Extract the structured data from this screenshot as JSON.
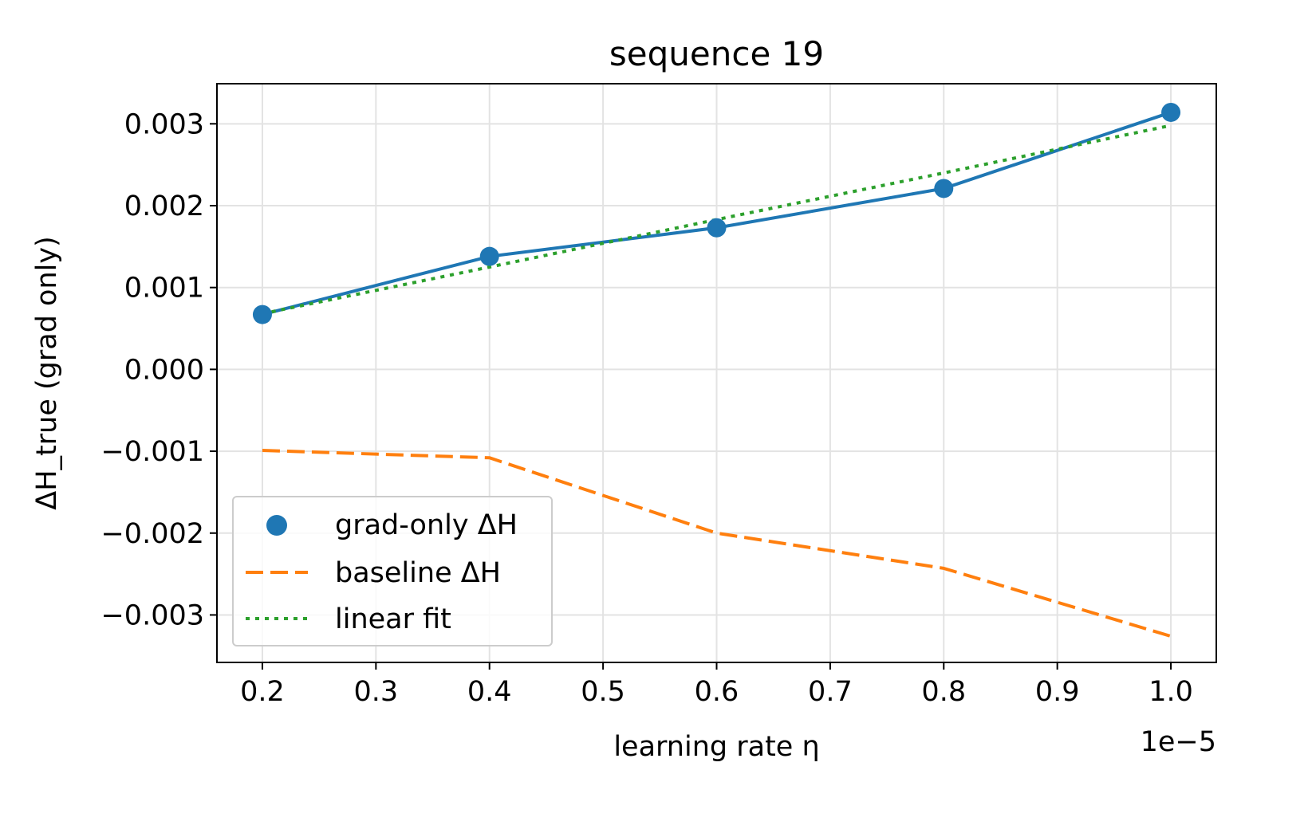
{
  "chart_data": {
    "type": "line",
    "title": "sequence 19",
    "xlabel": "learning rate η",
    "ylabel": "ΔH_true (grad only)",
    "x_offset_text": "1e−5",
    "x": [
      2e-06,
      4e-06,
      6e-06,
      8e-06,
      1e-05
    ],
    "x_ticks": [
      0.2,
      0.3,
      0.4,
      0.5,
      0.6,
      0.7,
      0.8,
      0.9,
      1.0
    ],
    "x_tick_labels": [
      "0.2",
      "0.3",
      "0.4",
      "0.5",
      "0.6",
      "0.7",
      "0.8",
      "0.9",
      "1.0"
    ],
    "y_ticks": [
      0.003,
      0.002,
      0.001,
      0.0,
      -0.001,
      -0.002,
      -0.003
    ],
    "y_tick_labels": [
      "0.003",
      "0.002",
      "0.001",
      "0.000",
      "−0.001",
      "−0.002",
      "−0.003"
    ],
    "xlim": [
      0.16,
      1.04
    ],
    "ylim": [
      -0.00358,
      0.00349
    ],
    "grid": true,
    "legend_position": "lower left",
    "series": [
      {
        "name": "grad-only ΔH",
        "style": "line+markers",
        "color": "#1f77b4",
        "values": [
          0.00067,
          0.00138,
          0.00173,
          0.00221,
          0.00314
        ]
      },
      {
        "name": "baseline ΔH",
        "style": "dashed",
        "color": "#ff7f0e",
        "values": [
          -0.00099,
          -0.00108,
          -0.002,
          -0.00243,
          -0.00326
        ]
      },
      {
        "name": "linear fit",
        "style": "dotted",
        "color": "#2ca02c",
        "values": [
          0.00068,
          0.00125,
          0.00183,
          0.0024,
          0.00298
        ]
      }
    ]
  }
}
